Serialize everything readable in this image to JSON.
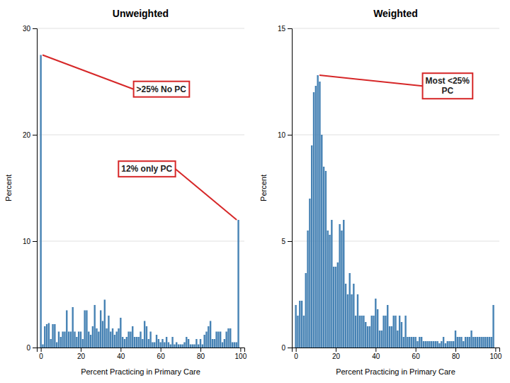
{
  "chart_data": [
    {
      "type": "bar",
      "title": "Unweighted",
      "xlabel": "Percent Practicing in Primary Care",
      "ylabel": "Percent",
      "x": [
        0,
        1,
        2,
        3,
        4,
        5,
        6,
        7,
        8,
        9,
        10,
        11,
        12,
        13,
        14,
        15,
        16,
        17,
        18,
        19,
        20,
        21,
        22,
        23,
        24,
        25,
        26,
        27,
        28,
        29,
        30,
        31,
        32,
        33,
        34,
        35,
        36,
        37,
        38,
        39,
        40,
        41,
        42,
        43,
        44,
        45,
        46,
        47,
        48,
        49,
        50,
        51,
        52,
        53,
        54,
        55,
        56,
        57,
        58,
        59,
        60,
        61,
        62,
        63,
        64,
        65,
        66,
        67,
        68,
        69,
        70,
        71,
        72,
        73,
        74,
        75,
        76,
        77,
        78,
        79,
        80,
        81,
        82,
        83,
        84,
        85,
        86,
        87,
        88,
        89,
        90,
        91,
        92,
        93,
        94,
        95,
        96,
        97,
        98,
        99
      ],
      "values": [
        27.5,
        0.3,
        2.0,
        2.2,
        2.3,
        0.8,
        2.2,
        2.2,
        0.5,
        1.5,
        1.0,
        1.5,
        1.5,
        3.5,
        1.5,
        1.5,
        3.8,
        1.5,
        1.0,
        1.5,
        1.5,
        0.8,
        3.5,
        3.5,
        1.5,
        1.2,
        2.0,
        4.0,
        1.8,
        1.5,
        3.5,
        2.5,
        4.5,
        1.8,
        3.0,
        1.5,
        1.8,
        1.2,
        1.5,
        1.8,
        2.8,
        1.0,
        0.8,
        1.0,
        1.5,
        1.5,
        2.0,
        1.0,
        1.0,
        1.0,
        1.5,
        0.8,
        2.5,
        2.0,
        0.8,
        1.5,
        0.5,
        0.5,
        1.2,
        0.8,
        0.5,
        0.8,
        0.5,
        1.0,
        0.5,
        0.3,
        1.0,
        0.3,
        0.5,
        0.3,
        0.3,
        0.3,
        0.5,
        1.0,
        0.8,
        0.3,
        0.3,
        0.3,
        0.8,
        0.3,
        0.8,
        0.3,
        1.2,
        1.5,
        2.0,
        2.5,
        0.8,
        0.8,
        1.5,
        1.5,
        1.5,
        0.5,
        0.8,
        1.5,
        1.8,
        1.8,
        0.5,
        0.5,
        0.5,
        12.0
      ],
      "xlim": [
        -2,
        102
      ],
      "xticks": [
        0,
        20,
        40,
        60,
        80,
        100
      ],
      "ylim": [
        0,
        30
      ],
      "yticks": [
        0,
        10,
        20,
        30
      ],
      "grid": true,
      "annotations": [
        ">25% No PC",
        "12% only PC"
      ]
    },
    {
      "type": "bar",
      "title": "Weighted",
      "xlabel": "Percent Practicing in Primary Care",
      "ylabel": "Percent",
      "x": [
        0,
        1,
        2,
        3,
        4,
        5,
        6,
        7,
        8,
        9,
        10,
        11,
        12,
        13,
        14,
        15,
        16,
        17,
        18,
        19,
        20,
        21,
        22,
        23,
        24,
        25,
        26,
        27,
        28,
        29,
        30,
        31,
        32,
        33,
        34,
        35,
        36,
        37,
        38,
        39,
        40,
        41,
        42,
        43,
        44,
        45,
        46,
        47,
        48,
        49,
        50,
        51,
        52,
        53,
        54,
        55,
        56,
        57,
        58,
        59,
        60,
        61,
        62,
        63,
        64,
        65,
        66,
        67,
        68,
        69,
        70,
        71,
        72,
        73,
        74,
        75,
        76,
        77,
        78,
        79,
        80,
        81,
        82,
        83,
        84,
        85,
        86,
        87,
        88,
        89,
        90,
        91,
        92,
        93,
        94,
        95,
        96,
        97,
        98,
        99
      ],
      "values": [
        2.0,
        1.5,
        2.2,
        2.2,
        1.5,
        3.5,
        5.5,
        7.0,
        9.5,
        12.0,
        12.3,
        12.8,
        12.5,
        10.0,
        8.5,
        8.3,
        5.5,
        5.3,
        6.0,
        3.8,
        3.8,
        4.0,
        5.8,
        5.5,
        6.0,
        3.0,
        2.5,
        3.5,
        2.5,
        3.0,
        1.5,
        2.5,
        1.5,
        1.5,
        1.5,
        1.2,
        1.0,
        1.0,
        1.5,
        1.5,
        2.3,
        1.8,
        0.8,
        0.8,
        1.5,
        1.5,
        2.0,
        1.0,
        1.0,
        1.5,
        1.5,
        0.8,
        1.5,
        1.2,
        0.5,
        1.5,
        0.5,
        0.5,
        0.5,
        0.5,
        0.5,
        0.3,
        0.5,
        0.5,
        0.3,
        0.3,
        0.3,
        0.3,
        0.3,
        0.3,
        0.3,
        0.3,
        0.2,
        0.3,
        0.5,
        0.2,
        0.3,
        0.3,
        0.3,
        0.3,
        0.8,
        0.5,
        0.5,
        0.5,
        0.3,
        0.5,
        0.5,
        0.5,
        0.8,
        0.5,
        0.5,
        0.5,
        0.5,
        0.5,
        0.5,
        0.5,
        0.5,
        0.5,
        0.5,
        2.0
      ],
      "xlim": [
        -2,
        102
      ],
      "xticks": [
        0,
        20,
        40,
        60,
        80,
        100
      ],
      "ylim": [
        0,
        15
      ],
      "yticks": [
        0,
        5,
        10,
        15
      ],
      "grid": true,
      "annotations": [
        "Most <25%\nPC"
      ]
    }
  ]
}
